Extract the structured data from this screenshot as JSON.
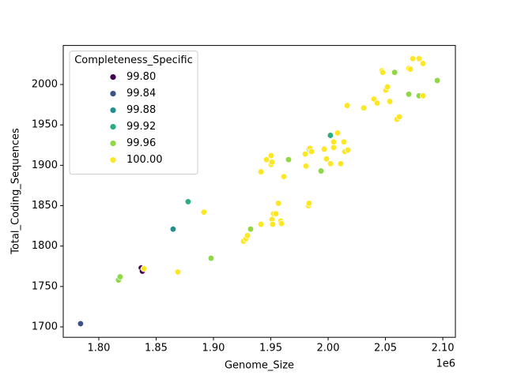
{
  "chart_data": {
    "type": "scatter",
    "x_label": "Genome_Size",
    "y_label": "Total_Coding_Sequences",
    "x_offset_label": "1e6",
    "legend_title": "Completeness_Specific",
    "legend_position": "upper left",
    "xlim": [
      1769000,
      2111000
    ],
    "ylim": [
      1687.1,
      2048.3
    ],
    "xticks": [
      {
        "value": 1800000,
        "label": "1.80"
      },
      {
        "value": 1850000,
        "label": "1.85"
      },
      {
        "value": 1900000,
        "label": "1.90"
      },
      {
        "value": 1950000,
        "label": "1.95"
      },
      {
        "value": 2000000,
        "label": "2.00"
      },
      {
        "value": 2050000,
        "label": "2.05"
      },
      {
        "value": 2100000,
        "label": "2.10"
      }
    ],
    "yticks": [
      1700,
      1750,
      1800,
      1850,
      1900,
      1950,
      2000
    ],
    "series": [
      {
        "name": "99.80",
        "color": "#440154",
        "x": [
          1837000,
          1838000
        ],
        "y": [
          1773,
          1769
        ]
      },
      {
        "name": "99.84",
        "color": "#3b528b",
        "x": [
          1784100
        ],
        "y": [
          1704
        ]
      },
      {
        "name": "99.88",
        "color": "#21918c",
        "x": [
          1864800
        ],
        "y": [
          1821
        ]
      },
      {
        "name": "99.92",
        "color": "#28ae80",
        "x": [
          1877900,
          2002000
        ],
        "y": [
          1855,
          1937
        ]
      },
      {
        "name": "99.96",
        "color": "#8fd744",
        "x": [
          1817200,
          1818600,
          1897900,
          1932400,
          1965500,
          1993800,
          2058000,
          2070300,
          2095200,
          2079300,
          1983400
        ],
        "y": [
          1758,
          1762,
          1785,
          1821,
          1907,
          1893,
          2015,
          1988,
          2005,
          1986,
          1920
        ]
      },
      {
        "name": "100.00",
        "color": "#fde725",
        "x": [
          1839300,
          1869000,
          1891700,
          1926200,
          1928300,
          1929700,
          1941400,
          1951000,
          1951700,
          1952400,
          1954500,
          1958600,
          1959300,
          1956600,
          1982800,
          1983400,
          1941400,
          1946200,
          1950300,
          1950300,
          1951000,
          1961400,
          1980000,
          1980700,
          1984100,
          1985500,
          1996600,
          1998600,
          2002100,
          2004800,
          2004800,
          2008300,
          2011000,
          2013800,
          2014500,
          2017200,
          2016600,
          2031000,
          2040000,
          2042800,
          2046900,
          2047600,
          2050300,
          2051700,
          2053800,
          2060000,
          2062100,
          2070300,
          2071700,
          2073800,
          2079300,
          2082800,
          2082800
        ],
        "y": [
          1772,
          1768,
          1842,
          1806,
          1809,
          1813,
          1827,
          1833,
          1827,
          1840,
          1840,
          1831,
          1828,
          1853,
          1850,
          1853,
          1892,
          1907,
          1912,
          1901,
          1904,
          1886,
          1914,
          1899,
          1921,
          1917,
          1920,
          1908,
          1902,
          1922,
          1929,
          1940,
          1902,
          1929,
          1917,
          1919,
          1974,
          1971,
          1982,
          1977,
          2017,
          2015,
          1993,
          1997,
          1979,
          1957,
          1960,
          2020,
          2019,
          2032,
          2032,
          2026,
          1986
        ]
      }
    ]
  }
}
